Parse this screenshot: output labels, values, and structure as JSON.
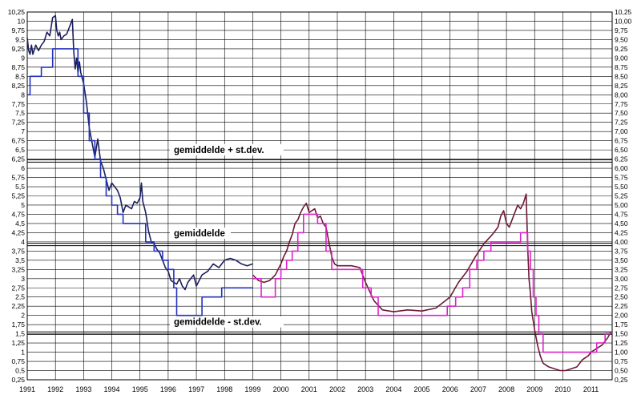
{
  "chart_data": {
    "type": "line",
    "title": "",
    "xlabel": "",
    "ylabel": "",
    "xlim": [
      1991,
      2011.75
    ],
    "ylim": [
      0.25,
      10.25
    ],
    "y_ticks": [
      "0,25",
      "0,5",
      "0,75",
      "1",
      "1,25",
      "1,5",
      "1,75",
      "2",
      "2,25",
      "2,5",
      "2,75",
      "3",
      "3,25",
      "3,5",
      "3,75",
      "4",
      "4,25",
      "4,5",
      "4,75",
      "5",
      "5,25",
      "5,5",
      "5,75",
      "6",
      "6,25",
      "6,5",
      "6,75",
      "7",
      "7,25",
      "7,5",
      "7,75",
      "8",
      "8,25",
      "8,5",
      "8,75",
      "9",
      "9,25",
      "9,5",
      "9,75",
      "10",
      "10,25"
    ],
    "y_ticks_right": [
      "0,25",
      "0,50",
      "0,75",
      "1,00",
      "1,25",
      "1,50",
      "1,75",
      "2,00",
      "2,25",
      "2,50",
      "2,75",
      "3,00",
      "3,25",
      "3,50",
      "3,75",
      "4,00",
      "4,25",
      "4,50",
      "4,75",
      "5,00",
      "5,25",
      "5,50",
      "5,75",
      "6,00",
      "6,25",
      "6,50",
      "6,75",
      "7,00",
      "7,25",
      "7,50",
      "7,75",
      "8,00",
      "8,25",
      "8,50",
      "8,75",
      "9,00",
      "9,25",
      "9,50",
      "9,75",
      "10,00",
      "10,25"
    ],
    "x_ticks": [
      "1991",
      "1992",
      "1993",
      "1994",
      "1995",
      "1996",
      "1997",
      "1998",
      "1999",
      "2000",
      "2001",
      "2002",
      "2003",
      "2004",
      "2005",
      "2006",
      "2007",
      "2008",
      "2009",
      "2010",
      "2011"
    ],
    "grid": true,
    "colors": {
      "market_rate_1": "#1b1f5e",
      "policy_rate_1": "#2233bb",
      "market_rate_2": "#6e1836",
      "policy_rate_2": "#dd22cc",
      "grid": "#000000",
      "reference": "#000000"
    },
    "reference_lines": [
      {
        "label": "gemiddelde + st.dev.",
        "y": 6.2
      },
      {
        "label": "gemiddelde",
        "y": 3.93
      },
      {
        "label": "gemiddelde - st.dev.",
        "y": 1.52
      }
    ],
    "series": [
      {
        "key": "market_rate_1",
        "x": [
          1991.0,
          1991.05,
          1991.1,
          1991.15,
          1991.2,
          1991.3,
          1991.4,
          1991.5,
          1991.6,
          1991.7,
          1991.8,
          1991.9,
          1992.0,
          1992.05,
          1992.1,
          1992.15,
          1992.2,
          1992.3,
          1992.4,
          1992.5,
          1992.6,
          1992.65,
          1992.7,
          1992.75,
          1992.8,
          1992.85,
          1992.9,
          1993.0,
          1993.1,
          1993.2,
          1993.3,
          1993.4,
          1993.5,
          1993.6,
          1993.7,
          1993.8,
          1993.9,
          1994.0,
          1994.1,
          1994.2,
          1994.3,
          1994.4,
          1994.5,
          1994.6,
          1994.7,
          1994.8,
          1994.9,
          1995.0,
          1995.05,
          1995.1,
          1995.2,
          1995.3,
          1995.4,
          1995.5,
          1995.6,
          1995.7,
          1995.8,
          1995.9,
          1996.0,
          1996.1,
          1996.2,
          1996.3,
          1996.4,
          1996.5,
          1996.6,
          1996.7,
          1996.8,
          1996.9,
          1997.0,
          1997.2,
          1997.4,
          1997.6,
          1997.8,
          1998.0,
          1998.2,
          1998.4,
          1998.6,
          1998.8,
          1999.0
        ],
        "y": [
          9.55,
          9.2,
          9.1,
          9.35,
          9.1,
          9.35,
          9.2,
          9.35,
          9.45,
          9.7,
          9.6,
          10.1,
          10.15,
          9.75,
          9.6,
          9.7,
          9.5,
          9.6,
          9.65,
          9.85,
          10.05,
          9.2,
          8.7,
          9.0,
          8.6,
          8.9,
          8.6,
          8.3,
          7.8,
          7.1,
          6.7,
          6.3,
          6.8,
          6.2,
          6.0,
          5.7,
          5.4,
          5.6,
          5.5,
          5.4,
          5.2,
          4.8,
          5.0,
          4.95,
          4.9,
          5.1,
          5.05,
          5.2,
          5.6,
          5.1,
          4.8,
          4.3,
          4.0,
          3.95,
          3.8,
          3.7,
          3.5,
          3.3,
          3.2,
          2.95,
          2.9,
          2.85,
          3.0,
          2.8,
          2.7,
          2.9,
          3.0,
          3.1,
          2.8,
          3.1,
          3.2,
          3.4,
          3.3,
          3.5,
          3.55,
          3.5,
          3.4,
          3.35,
          3.4
        ]
      },
      {
        "key": "policy_rate_1",
        "x": [
          1991.0,
          1991.1,
          1991.1,
          1991.5,
          1991.5,
          1991.9,
          1991.9,
          1992.8,
          1992.8,
          1993.0,
          1993.0,
          1993.2,
          1993.2,
          1993.4,
          1993.4,
          1993.6,
          1993.6,
          1993.8,
          1993.8,
          1994.0,
          1994.0,
          1994.2,
          1994.2,
          1994.4,
          1994.4,
          1995.2,
          1995.2,
          1995.5,
          1995.5,
          1995.8,
          1995.8,
          1996.0,
          1996.0,
          1996.2,
          1996.2,
          1996.3,
          1996.3,
          1997.2,
          1997.2,
          1997.9,
          1997.9,
          1999.0
        ],
        "y": [
          8.0,
          8.0,
          8.5,
          8.5,
          8.75,
          8.75,
          9.25,
          9.25,
          8.5,
          8.5,
          7.5,
          7.5,
          6.75,
          6.75,
          6.25,
          6.25,
          5.75,
          5.75,
          5.25,
          5.25,
          5.0,
          5.0,
          4.75,
          4.75,
          4.5,
          4.5,
          4.0,
          4.0,
          3.75,
          3.75,
          3.5,
          3.5,
          3.25,
          3.25,
          2.75,
          2.75,
          2.0,
          2.0,
          2.5,
          2.5,
          2.75,
          2.75
        ]
      },
      {
        "key": "market_rate_2",
        "x": [
          1999.0,
          1999.2,
          1999.4,
          1999.6,
          1999.8,
          2000.0,
          2000.1,
          2000.2,
          2000.3,
          2000.4,
          2000.5,
          2000.6,
          2000.7,
          2000.8,
          2000.9,
          2001.0,
          2001.1,
          2001.2,
          2001.3,
          2001.4,
          2001.5,
          2001.6,
          2001.7,
          2001.8,
          2001.9,
          2002.0,
          2002.5,
          2002.8,
          2003.0,
          2003.3,
          2003.6,
          2004.0,
          2004.5,
          2005.0,
          2005.5,
          2006.0,
          2006.3,
          2006.6,
          2006.9,
          2007.2,
          2007.5,
          2007.7,
          2007.8,
          2007.9,
          2008.0,
          2008.1,
          2008.2,
          2008.3,
          2008.4,
          2008.5,
          2008.6,
          2008.7,
          2008.75,
          2008.8,
          2008.85,
          2008.9,
          2009.0,
          2009.1,
          2009.2,
          2009.3,
          2009.5,
          2009.7,
          2009.9,
          2010.1,
          2010.3,
          2010.5,
          2010.7,
          2010.9,
          2011.0,
          2011.2,
          2011.4,
          2011.6,
          2011.7
        ],
        "y": [
          3.1,
          2.95,
          2.9,
          2.95,
          3.1,
          3.4,
          3.6,
          3.75,
          4.0,
          4.2,
          4.5,
          4.6,
          4.8,
          4.95,
          5.05,
          4.8,
          4.85,
          4.9,
          4.65,
          4.7,
          4.5,
          4.4,
          4.0,
          3.6,
          3.4,
          3.35,
          3.35,
          3.3,
          2.9,
          2.4,
          2.15,
          2.1,
          2.15,
          2.12,
          2.2,
          2.5,
          2.9,
          3.2,
          3.6,
          3.95,
          4.2,
          4.4,
          4.7,
          4.85,
          4.5,
          4.4,
          4.6,
          4.8,
          5.0,
          4.9,
          5.05,
          5.3,
          3.9,
          3.0,
          2.6,
          2.1,
          1.6,
          1.2,
          0.9,
          0.7,
          0.6,
          0.55,
          0.5,
          0.5,
          0.55,
          0.6,
          0.8,
          0.9,
          1.0,
          1.1,
          1.2,
          1.4,
          1.55
        ]
      },
      {
        "key": "policy_rate_2",
        "x": [
          1999.0,
          1999.3,
          1999.3,
          1999.8,
          1999.8,
          2000.0,
          2000.0,
          2000.2,
          2000.2,
          2000.4,
          2000.4,
          2000.6,
          2000.6,
          2000.8,
          2000.8,
          2001.3,
          2001.3,
          2001.6,
          2001.6,
          2001.8,
          2001.8,
          2002.9,
          2002.9,
          2003.2,
          2003.2,
          2003.45,
          2003.45,
          2005.9,
          2005.9,
          2006.2,
          2006.2,
          2006.45,
          2006.45,
          2006.7,
          2006.7,
          2006.95,
          2006.95,
          2007.2,
          2007.2,
          2007.45,
          2007.45,
          2008.5,
          2008.5,
          2008.75,
          2008.75,
          2008.85,
          2008.85,
          2008.95,
          2008.95,
          2009.05,
          2009.05,
          2009.15,
          2009.15,
          2009.3,
          2009.3,
          2011.2,
          2011.2,
          2011.5,
          2011.5,
          2011.7
        ],
        "y": [
          3.0,
          3.0,
          2.5,
          2.5,
          3.0,
          3.0,
          3.25,
          3.25,
          3.5,
          3.5,
          3.75,
          3.75,
          4.25,
          4.25,
          4.75,
          4.75,
          4.5,
          4.5,
          3.75,
          3.75,
          3.25,
          3.25,
          2.75,
          2.75,
          2.5,
          2.5,
          2.0,
          2.0,
          2.25,
          2.25,
          2.5,
          2.5,
          2.75,
          2.75,
          3.25,
          3.25,
          3.5,
          3.5,
          3.75,
          3.75,
          4.0,
          4.0,
          4.25,
          4.25,
          3.75,
          3.75,
          3.25,
          3.25,
          2.5,
          2.5,
          2.0,
          2.0,
          1.5,
          1.5,
          1.0,
          1.0,
          1.25,
          1.25,
          1.5,
          1.5
        ]
      }
    ]
  }
}
